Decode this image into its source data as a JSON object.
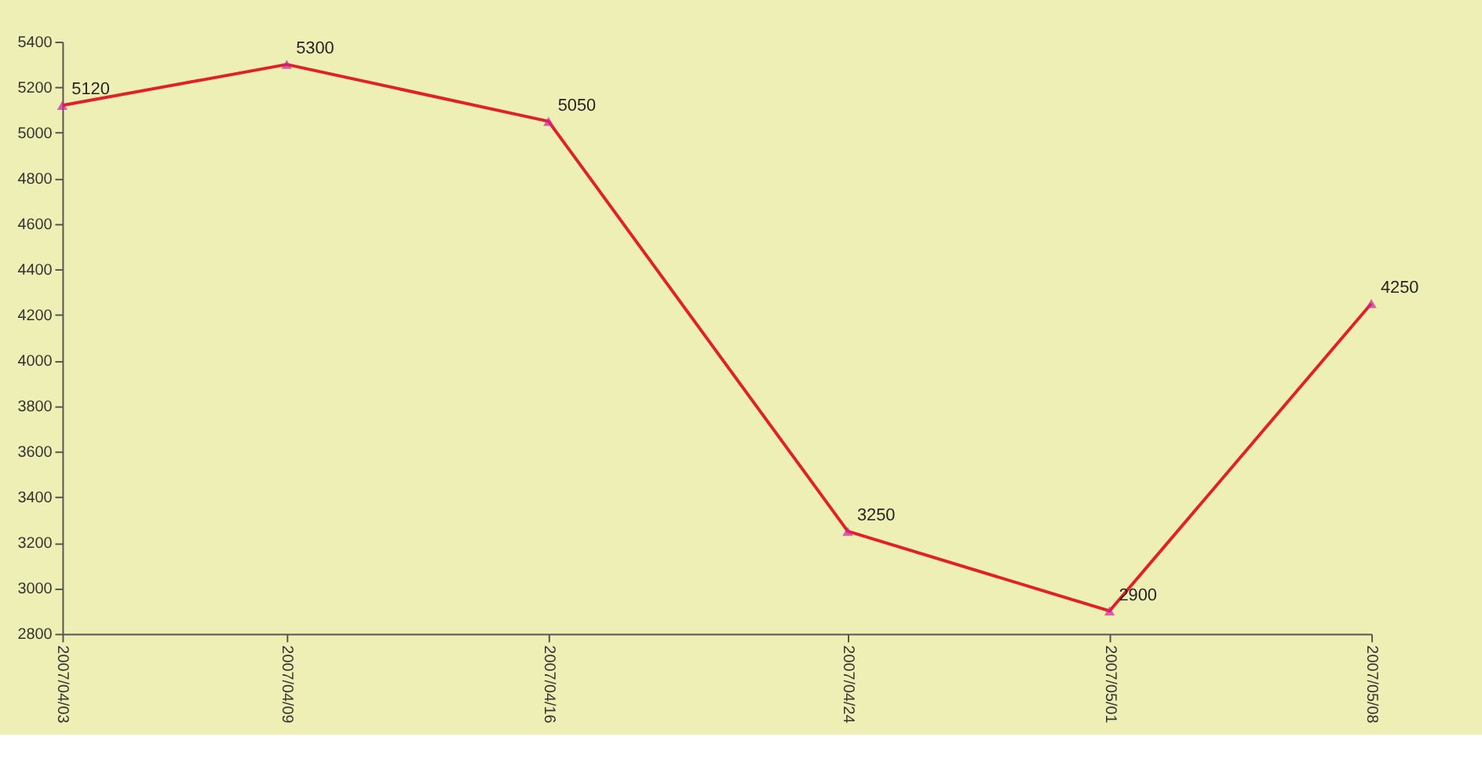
{
  "chart_data": {
    "type": "line",
    "x": [
      "2007-04-03",
      "2007-04-09",
      "2007-04-16",
      "2007-04-24",
      "2007-05-01",
      "2007-05-08"
    ],
    "series": [
      {
        "color": "#e0202a",
        "values": [
          5120,
          5300,
          5050,
          3250,
          2900,
          4250
        ]
      }
    ],
    "marker": "triangle",
    "data_labels": true,
    "grid": false,
    "ylim": [
      2800,
      5400
    ],
    "yticks": [
      2800,
      3000,
      3200,
      3400,
      3600,
      3800,
      4000,
      4200,
      4400,
      4600,
      4800,
      5000,
      5200,
      5400
    ],
    "xlim": [
      "2007-04-03",
      "2007-05-08"
    ],
    "xticks": [
      {
        "value": "2007-04-03",
        "label": "2007/04/03"
      },
      {
        "value": "2007-04-09",
        "label": "2007/04/09"
      },
      {
        "value": "2007-04-16",
        "label": "2007/04/16"
      },
      {
        "value": "2007-04-24",
        "label": "2007/04/24"
      },
      {
        "value": "2007-05-01",
        "label": "2007/05/01"
      },
      {
        "value": "2007-05-08",
        "label": "2007/05/08"
      }
    ]
  }
}
